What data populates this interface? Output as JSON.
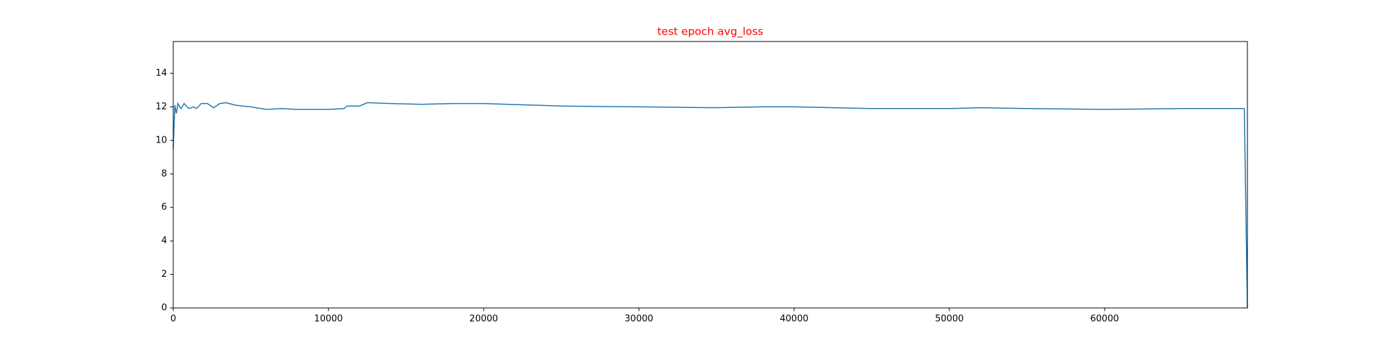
{
  "chart_data": {
    "type": "line",
    "title": "test epoch avg_loss",
    "title_color": "#ff0000",
    "x": [
      0,
      50,
      100,
      200,
      300,
      500,
      700,
      1000,
      1300,
      1500,
      1800,
      2200,
      2600,
      3000,
      3400,
      4000,
      5000,
      6000,
      7000,
      8000,
      9000,
      10000,
      11000,
      11200,
      12000,
      12500,
      14000,
      16000,
      18000,
      20000,
      25000,
      30000,
      35000,
      38000,
      40000,
      45000,
      50000,
      52000,
      55000,
      60000,
      65000,
      69000,
      69200
    ],
    "series": [
      {
        "name": "avg_loss",
        "color": "#1f77b4",
        "values": [
          9.5,
          10.8,
          12.1,
          11.6,
          12.2,
          11.9,
          12.2,
          11.9,
          12.0,
          11.9,
          12.2,
          12.2,
          11.95,
          12.2,
          12.25,
          12.1,
          12.0,
          11.85,
          11.9,
          11.85,
          11.85,
          11.85,
          11.9,
          12.05,
          12.05,
          12.25,
          12.2,
          12.15,
          12.2,
          12.2,
          12.05,
          12.0,
          11.95,
          12.0,
          12.0,
          11.9,
          11.9,
          11.95,
          11.9,
          11.85,
          11.9,
          11.9,
          0
        ]
      }
    ],
    "xlim": [
      0,
      69200
    ],
    "xticks": [
      0,
      10000,
      20000,
      30000,
      40000,
      50000,
      60000
    ],
    "ylim": [
      0,
      15.9
    ],
    "yticks": [
      0,
      2,
      4,
      6,
      8,
      10,
      12,
      14
    ],
    "grid": false
  }
}
